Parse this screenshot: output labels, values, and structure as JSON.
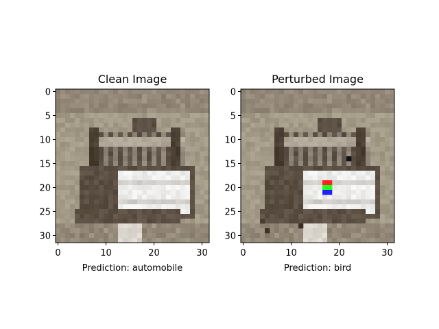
{
  "panels": [
    {
      "title": "Clean Image",
      "xlabel": "Prediction: automobile",
      "xticks": [
        "0",
        "10",
        "20",
        "30"
      ],
      "yticks": [
        "0",
        "5",
        "10",
        "15",
        "20",
        "25",
        "30"
      ],
      "perturbation_pixels": []
    },
    {
      "title": "Perturbed Image",
      "xlabel": "Prediction: bird",
      "xticks": [
        "0",
        "10",
        "20",
        "30"
      ],
      "yticks": [
        "0",
        "5",
        "10",
        "15",
        "20",
        "25",
        "30"
      ],
      "perturbation_pixels": [
        {
          "col": 17,
          "row": 19,
          "color": "#ff2020"
        },
        {
          "col": 18,
          "row": 19,
          "color": "#ff2020"
        },
        {
          "col": 17,
          "row": 20,
          "color": "#20ff20"
        },
        {
          "col": 18,
          "row": 20,
          "color": "#20ff20"
        },
        {
          "col": 17,
          "row": 21,
          "color": "#2020ff"
        },
        {
          "col": 18,
          "row": 21,
          "color": "#2020ff"
        },
        {
          "col": 22,
          "row": 14,
          "color": "#111111"
        },
        {
          "col": 12,
          "row": 28,
          "color": "#3a2e24"
        },
        {
          "col": 4,
          "row": 27,
          "color": "#4a3e33"
        },
        {
          "col": 5,
          "row": 29,
          "color": "#3e3329"
        }
      ]
    }
  ],
  "image_grid_size": 32,
  "palette": {
    "sky": "#a49a88",
    "dark": "#4a3e33",
    "mid": "#7a6e60",
    "light": "#c8c0b2",
    "white": "#eeeeec"
  }
}
